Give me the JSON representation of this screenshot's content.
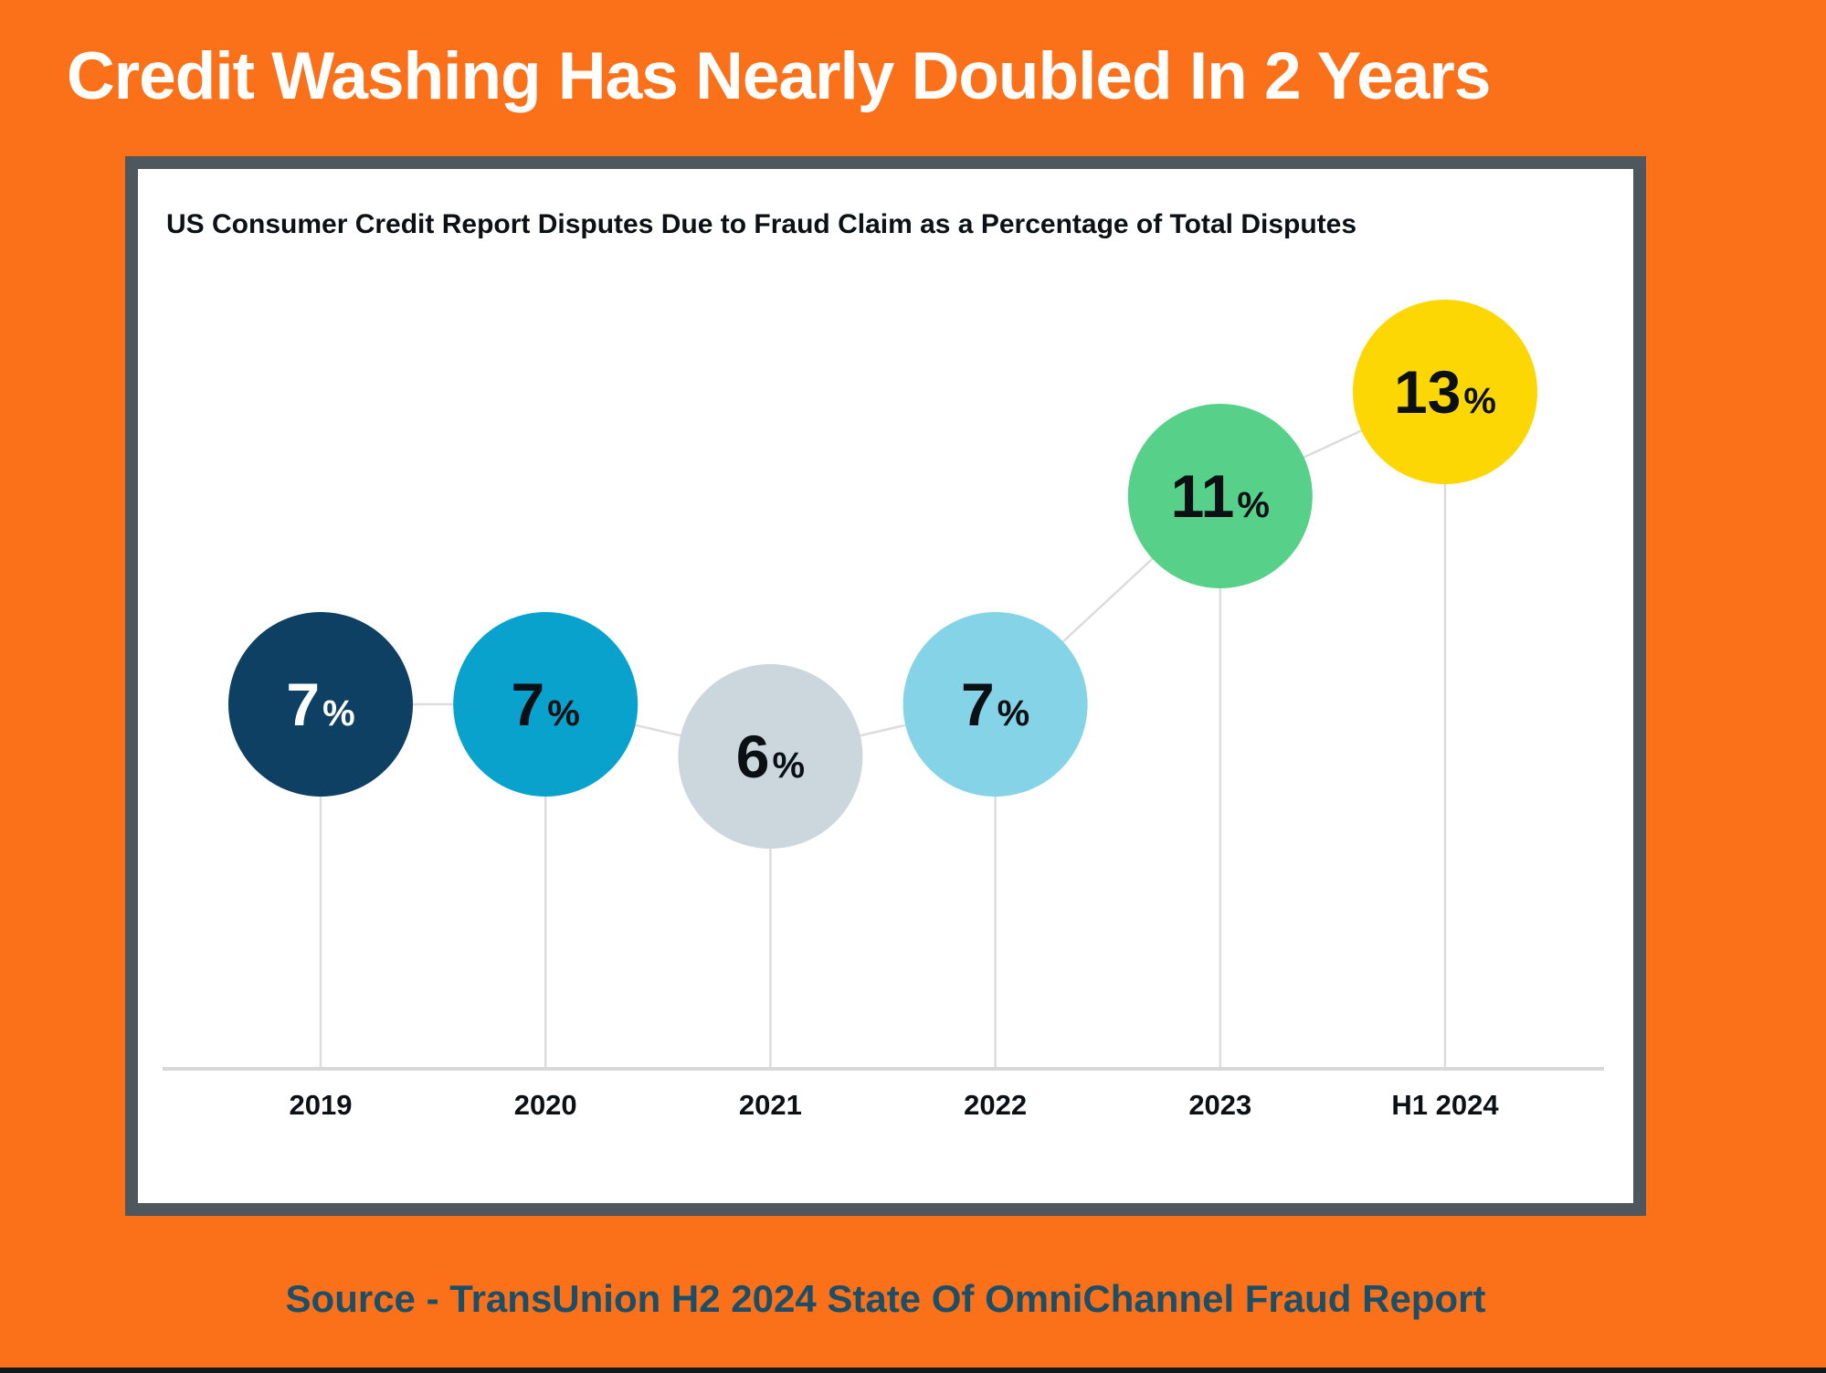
{
  "page": {
    "title": "Credit Washing Has Nearly Doubled In 2 Years",
    "source": "Source - TransUnion H2 2024 State Of OmniChannel Fraud Report"
  },
  "colors": {
    "background": "#FB7119",
    "panel_border": "#4E565E",
    "panel_bg": "#FFFFFF",
    "title_text": "#FFFFFF",
    "subtitle_text": "#0C1116",
    "source_text": "#1C4E68",
    "axis_line": "#D8D8D8",
    "connector_line": "#DCDCDC",
    "category_label": "#0C1116",
    "bottom_bar": "#14171B"
  },
  "chart_data": {
    "type": "line",
    "marker_style": "bubble",
    "title": "US Consumer Credit Report Disputes Due to Fraud Claim as a Percentage of Total Disputes",
    "categories": [
      "2019",
      "2020",
      "2021",
      "2022",
      "2023",
      "H1 2024"
    ],
    "values": [
      7,
      7,
      6,
      7,
      11,
      13
    ],
    "unit": "%",
    "ylim": [
      0,
      17
    ],
    "grid": false,
    "legend": false,
    "point_colors": [
      "#0D4063",
      "#09A2CC",
      "#CBD7DC",
      "#84D3E6",
      "#57D189",
      "#FCD703"
    ],
    "value_label_colors": [
      "#FFFFFF",
      "#0B1015",
      "#0B1015",
      "#0B1015",
      "#0B1015",
      "#0B1015"
    ]
  }
}
